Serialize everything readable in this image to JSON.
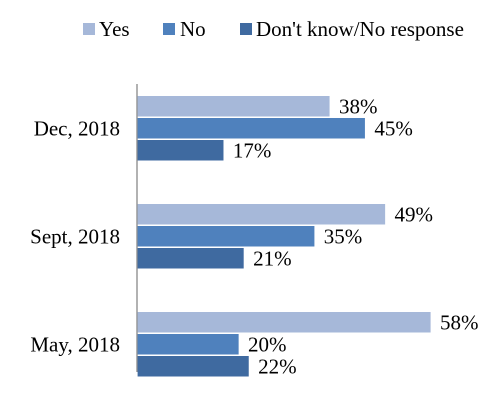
{
  "chart_data": {
    "type": "bar",
    "orientation": "horizontal",
    "categories": [
      "Dec, 2018",
      "Sept, 2018",
      "May, 2018"
    ],
    "series": [
      {
        "name": "Yes",
        "values": [
          38,
          49,
          58
        ],
        "color": "#a6b8d9"
      },
      {
        "name": "No",
        "values": [
          45,
          35,
          20
        ],
        "color": "#4f81bd"
      },
      {
        "name": "Don't know/No response",
        "values": [
          17,
          21,
          22
        ],
        "color": "#3f6aa0"
      }
    ],
    "value_suffix": "%",
    "xlim": [
      0,
      62
    ],
    "legend_position": "top",
    "gridlines": false,
    "x_axis_visible": false
  }
}
